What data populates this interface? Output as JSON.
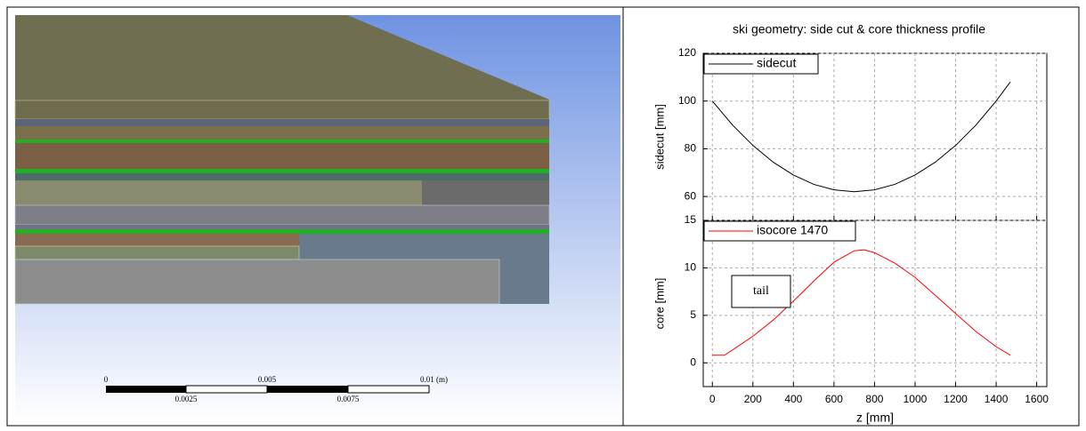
{
  "scale_bar": {
    "top_labels": [
      "0",
      "0.005",
      "0.01 (m)"
    ],
    "bottom_labels": [
      "0.0025",
      "0.0075"
    ]
  },
  "chart_data": [
    {
      "type": "line",
      "title": "ski geometry: side cut & core thickness profile",
      "y_label": "sidecut [mm]",
      "x": [
        0,
        100,
        200,
        300,
        400,
        500,
        600,
        700,
        800,
        900,
        1000,
        1100,
        1200,
        1300,
        1400,
        1470
      ],
      "series": [
        {
          "name": "sidecut",
          "color": "#000000",
          "values": [
            100,
            89.9,
            81.4,
            74.4,
            69.0,
            65.1,
            62.8,
            62,
            62.8,
            65.1,
            69.0,
            74.4,
            81.4,
            89.9,
            100,
            108
          ]
        }
      ],
      "xlim": [
        -45,
        1650
      ],
      "ylim": [
        50,
        120
      ],
      "yticks": [
        60,
        80,
        100,
        120
      ],
      "grid": true,
      "legend": "upper-left"
    },
    {
      "type": "line",
      "y_label": "core [mm]",
      "x_label": "z [mm]",
      "annotation": "tail",
      "x": [
        0,
        60,
        200,
        300,
        400,
        500,
        600,
        700,
        750,
        800,
        900,
        1000,
        1100,
        1200,
        1300,
        1400,
        1470
      ],
      "series": [
        {
          "name": "isocore 1470",
          "color": "#ff0000",
          "values": [
            0.8,
            0.8,
            2.8,
            4.5,
            6.5,
            8.6,
            10.6,
            11.8,
            11.9,
            11.6,
            10.5,
            9.0,
            7.1,
            5.2,
            3.3,
            1.7,
            0.8
          ]
        }
      ],
      "xlim": [
        -45,
        1650
      ],
      "ylim": [
        -2.5,
        15
      ],
      "xticks": [
        0,
        200,
        400,
        600,
        800,
        1000,
        1200,
        1400,
        1600
      ],
      "yticks": [
        0,
        5,
        10,
        15
      ],
      "grid": true,
      "legend": "upper-left"
    }
  ]
}
